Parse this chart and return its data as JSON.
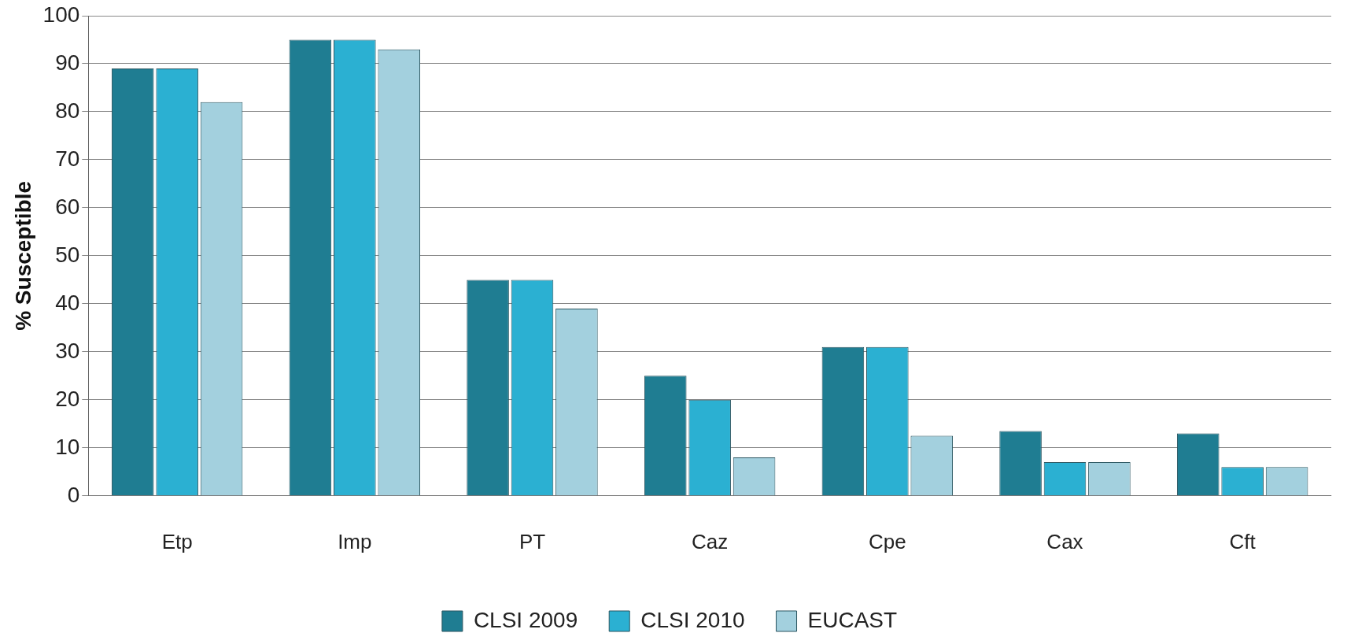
{
  "chart_data": {
    "type": "bar",
    "ylabel": "% Susceptible",
    "categories": [
      "Etp",
      "Imp",
      "PT",
      "Caz",
      "Cpe",
      "Cax",
      "Cft"
    ],
    "series": [
      {
        "name": "CLSI 2009",
        "color": "#1f7d92",
        "values": [
          89,
          95,
          45,
          25,
          31,
          13.5,
          13
        ]
      },
      {
        "name": "CLSI 2010",
        "color": "#2bb0d2",
        "values": [
          89,
          95,
          45,
          20,
          31,
          7,
          6
        ]
      },
      {
        "name": "EUCAST",
        "color": "#a3d0de",
        "values": [
          82,
          93,
          39,
          8,
          12.5,
          7,
          6
        ]
      }
    ],
    "ylim": [
      0,
      100
    ],
    "yticks": [
      0,
      10,
      20,
      30,
      40,
      50,
      60,
      70,
      80,
      90,
      100
    ],
    "grid": "y",
    "legend": "bottom"
  }
}
